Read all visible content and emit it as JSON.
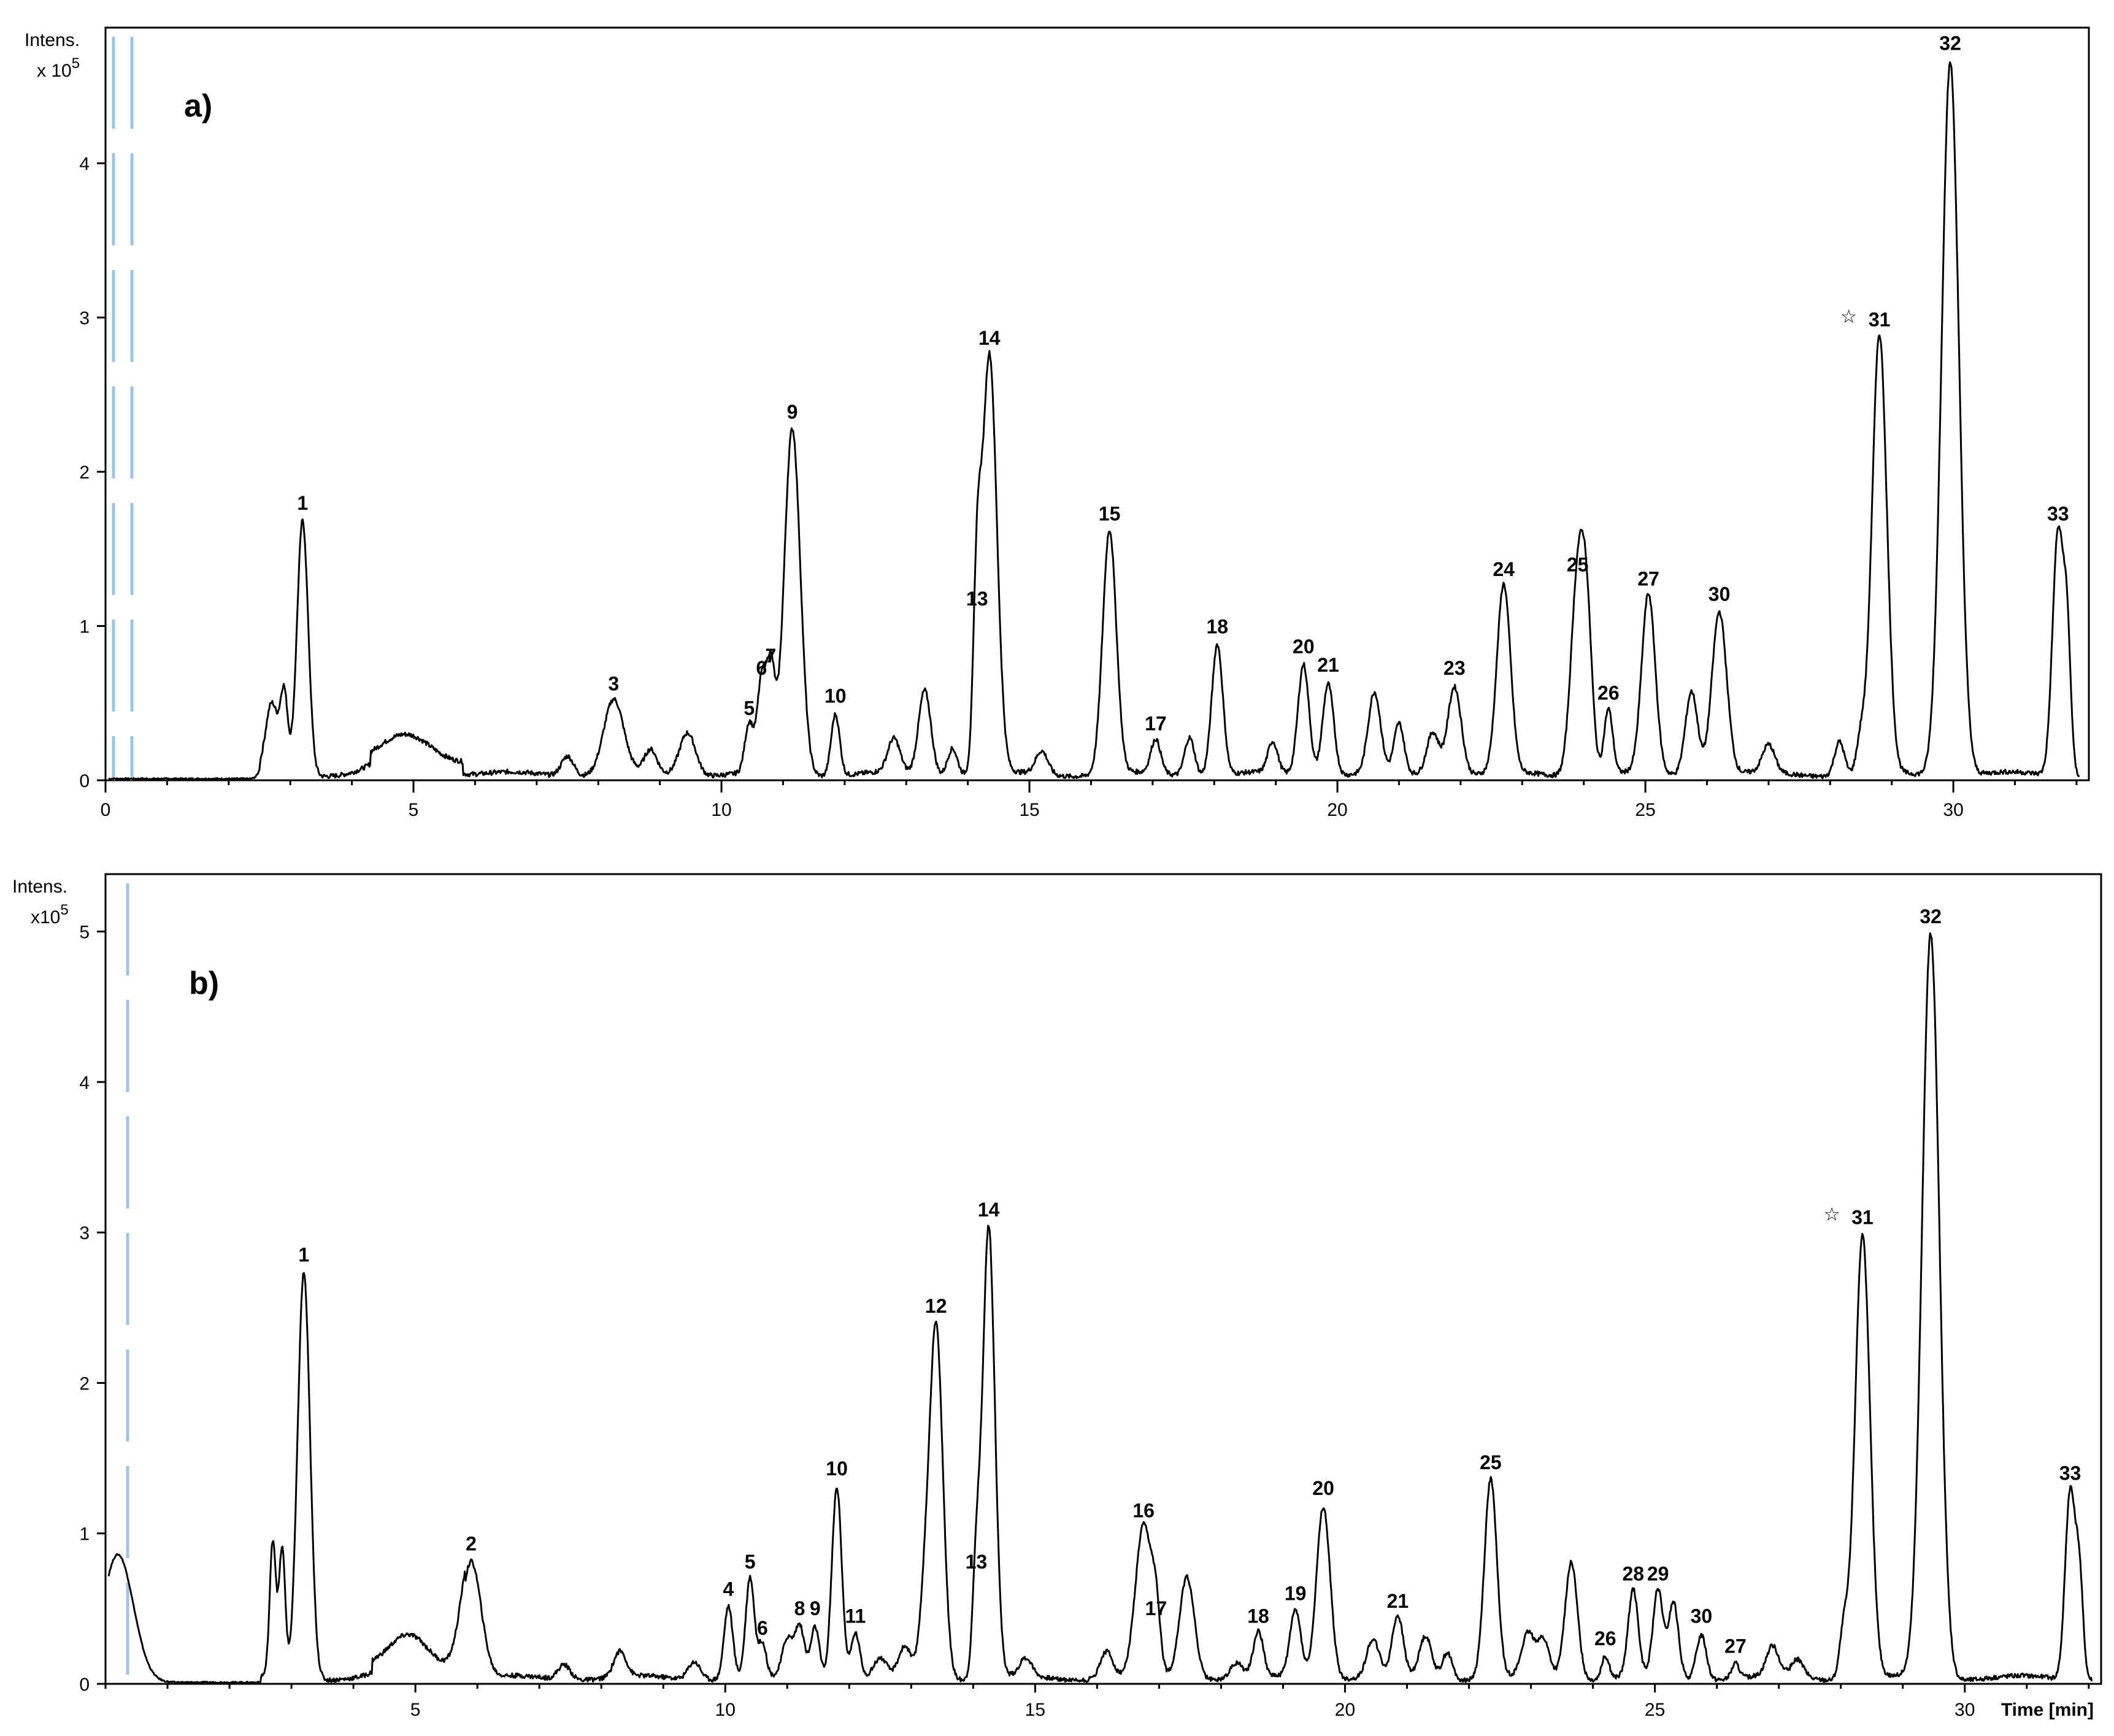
{
  "chart_data": [
    {
      "type": "line",
      "panel_label": "a)",
      "ylabel_line1": "Intens.",
      "ylabel_line2": "x 10",
      "ylabel_exp": "5",
      "xlabel": "",
      "xlim": [
        0,
        32.2
      ],
      "ylim": [
        0,
        4.8
      ],
      "xticks": [
        0,
        5,
        10,
        15,
        20,
        25,
        30
      ],
      "yticks": [
        0,
        1,
        2,
        3,
        4
      ],
      "star_label": "☆",
      "star_peak": "31",
      "peaks": [
        {
          "label": "1",
          "x": 3.2,
          "y": 1.65,
          "w": 0.09
        },
        {
          "label": "3",
          "x": 8.25,
          "y": 0.48,
          "w": 0.16
        },
        {
          "label": "5",
          "x": 10.45,
          "y": 0.32,
          "w": 0.07
        },
        {
          "label": "6",
          "x": 10.65,
          "y": 0.58,
          "w": 0.07
        },
        {
          "label": "7",
          "x": 10.8,
          "y": 0.66,
          "w": 0.07
        },
        {
          "label": "9",
          "x": 11.15,
          "y": 2.24,
          "w": 0.13
        },
        {
          "label": "10",
          "x": 11.85,
          "y": 0.4,
          "w": 0.07
        },
        {
          "label": "13",
          "x": 14.15,
          "y": 1.03,
          "w": 0.06
        },
        {
          "label": "14",
          "x": 14.35,
          "y": 2.72,
          "w": 0.12
        },
        {
          "label": "15",
          "x": 16.3,
          "y": 1.58,
          "w": 0.11
        },
        {
          "label": "17",
          "x": 17.05,
          "y": 0.22,
          "w": 0.08
        },
        {
          "label": "18",
          "x": 18.05,
          "y": 0.85,
          "w": 0.09
        },
        {
          "label": "20",
          "x": 19.45,
          "y": 0.72,
          "w": 0.09
        },
        {
          "label": "21",
          "x": 19.85,
          "y": 0.6,
          "w": 0.09
        },
        {
          "label": "23",
          "x": 21.9,
          "y": 0.58,
          "w": 0.11
        },
        {
          "label": "24",
          "x": 22.7,
          "y": 1.22,
          "w": 0.11
        },
        {
          "label": "25",
          "x": 23.9,
          "y": 1.25,
          "w": 0.11
        },
        {
          "label": "26",
          "x": 24.4,
          "y": 0.42,
          "w": 0.07
        },
        {
          "label": "27",
          "x": 25.05,
          "y": 1.16,
          "w": 0.11
        },
        {
          "label": "30",
          "x": 26.2,
          "y": 1.06,
          "w": 0.12
        },
        {
          "label": "31",
          "x": 28.8,
          "y": 2.84,
          "w": 0.12
        },
        {
          "label": "32",
          "x": 29.95,
          "y": 4.63,
          "w": 0.14
        },
        {
          "label": "33",
          "x": 31.7,
          "y": 1.58,
          "w": 0.09
        }
      ],
      "minor_peaks": [
        [
          2.7,
          0.45,
          0.1
        ],
        [
          2.9,
          0.5,
          0.06
        ],
        [
          4.9,
          0.17,
          0.4
        ],
        [
          7.5,
          0.13,
          0.1
        ],
        [
          8.85,
          0.15,
          0.1
        ],
        [
          9.45,
          0.28,
          0.13
        ],
        [
          12.8,
          0.22,
          0.1
        ],
        [
          13.3,
          0.55,
          0.1
        ],
        [
          13.75,
          0.18,
          0.08
        ],
        [
          15.2,
          0.15,
          0.1
        ],
        [
          17.6,
          0.25,
          0.08
        ],
        [
          18.95,
          0.2,
          0.08
        ],
        [
          20.6,
          0.52,
          0.1
        ],
        [
          21.0,
          0.32,
          0.08
        ],
        [
          21.55,
          0.28,
          0.1
        ],
        [
          24.05,
          0.85,
          0.09
        ],
        [
          25.75,
          0.55,
          0.1
        ],
        [
          27.0,
          0.18,
          0.1
        ],
        [
          28.15,
          0.22,
          0.08
        ],
        [
          28.5,
          0.22,
          0.07
        ],
        [
          31.85,
          0.78,
          0.06
        ]
      ]
    },
    {
      "type": "line",
      "panel_label": "b)",
      "ylabel_line1": "Intens.",
      "ylabel_line2": "x10",
      "ylabel_exp": "5",
      "xlabel": "Time [min]",
      "xlim": [
        0,
        32.2
      ],
      "ylim": [
        0,
        5.3
      ],
      "xticks": [
        5,
        10,
        15,
        20,
        25,
        30
      ],
      "yticks": [
        0,
        1,
        2,
        3,
        4,
        5
      ],
      "star_label": "☆",
      "star_peak": "31",
      "peaks": [
        {
          "label": "1",
          "x": 3.2,
          "y": 2.7,
          "w": 0.1
        },
        {
          "label": "2",
          "x": 5.9,
          "y": 0.78,
          "w": 0.16
        },
        {
          "label": "4",
          "x": 10.05,
          "y": 0.48,
          "w": 0.07
        },
        {
          "label": "5",
          "x": 10.4,
          "y": 0.66,
          "w": 0.07
        },
        {
          "label": "6",
          "x": 10.6,
          "y": 0.22,
          "w": 0.06
        },
        {
          "label": "8",
          "x": 11.2,
          "y": 0.35,
          "w": 0.08
        },
        {
          "label": "9",
          "x": 11.45,
          "y": 0.35,
          "w": 0.07
        },
        {
          "label": "10",
          "x": 11.8,
          "y": 1.28,
          "w": 0.08
        },
        {
          "label": "11",
          "x": 12.1,
          "y": 0.3,
          "w": 0.07
        },
        {
          "label": "12",
          "x": 13.4,
          "y": 2.36,
          "w": 0.11
        },
        {
          "label": "13",
          "x": 14.05,
          "y": 0.66,
          "w": 0.06
        },
        {
          "label": "14",
          "x": 14.25,
          "y": 3.0,
          "w": 0.1
        },
        {
          "label": "16",
          "x": 16.75,
          "y": 1.0,
          "w": 0.13
        },
        {
          "label": "17",
          "x": 16.95,
          "y": 0.35,
          "w": 0.07
        },
        {
          "label": "18",
          "x": 18.6,
          "y": 0.3,
          "w": 0.08
        },
        {
          "label": "19",
          "x": 19.2,
          "y": 0.45,
          "w": 0.09
        },
        {
          "label": "20",
          "x": 19.65,
          "y": 1.15,
          "w": 0.11
        },
        {
          "label": "21",
          "x": 20.85,
          "y": 0.4,
          "w": 0.09
        },
        {
          "label": "25",
          "x": 22.35,
          "y": 1.32,
          "w": 0.1
        },
        {
          "label": "26",
          "x": 24.2,
          "y": 0.15,
          "w": 0.06
        },
        {
          "label": "27",
          "x": 26.3,
          "y": 0.1,
          "w": 0.06
        },
        {
          "label": "28",
          "x": 24.65,
          "y": 0.58,
          "w": 0.08
        },
        {
          "label": "29",
          "x": 25.05,
          "y": 0.58,
          "w": 0.08
        },
        {
          "label": "30",
          "x": 25.75,
          "y": 0.3,
          "w": 0.08
        },
        {
          "label": "31",
          "x": 28.35,
          "y": 2.95,
          "w": 0.12
        },
        {
          "label": "32",
          "x": 29.45,
          "y": 4.95,
          "w": 0.14
        },
        {
          "label": "33",
          "x": 31.7,
          "y": 1.25,
          "w": 0.08
        }
      ],
      "minor_peaks": [
        [
          0.2,
          0.85,
          0.25
        ],
        [
          2.7,
          0.9,
          0.05
        ],
        [
          2.85,
          0.85,
          0.05
        ],
        [
          4.9,
          0.2,
          0.3
        ],
        [
          7.4,
          0.1,
          0.1
        ],
        [
          8.3,
          0.17,
          0.1
        ],
        [
          9.5,
          0.12,
          0.1
        ],
        [
          11.0,
          0.25,
          0.08
        ],
        [
          12.5,
          0.12,
          0.1
        ],
        [
          12.9,
          0.2,
          0.1
        ],
        [
          13.2,
          0.35,
          0.08
        ],
        [
          14.85,
          0.12,
          0.1
        ],
        [
          16.15,
          0.18,
          0.1
        ],
        [
          17.45,
          0.68,
          0.12
        ],
        [
          18.25,
          0.1,
          0.1
        ],
        [
          20.45,
          0.25,
          0.1
        ],
        [
          21.3,
          0.28,
          0.1
        ],
        [
          21.65,
          0.18,
          0.08
        ],
        [
          22.95,
          0.28,
          0.1
        ],
        [
          23.2,
          0.25,
          0.1
        ],
        [
          23.65,
          0.78,
          0.1
        ],
        [
          25.3,
          0.5,
          0.08
        ],
        [
          26.9,
          0.2,
          0.1
        ],
        [
          27.3,
          0.12,
          0.1
        ],
        [
          28.05,
          0.32,
          0.07
        ],
        [
          31.85,
          0.65,
          0.06
        ]
      ]
    }
  ]
}
